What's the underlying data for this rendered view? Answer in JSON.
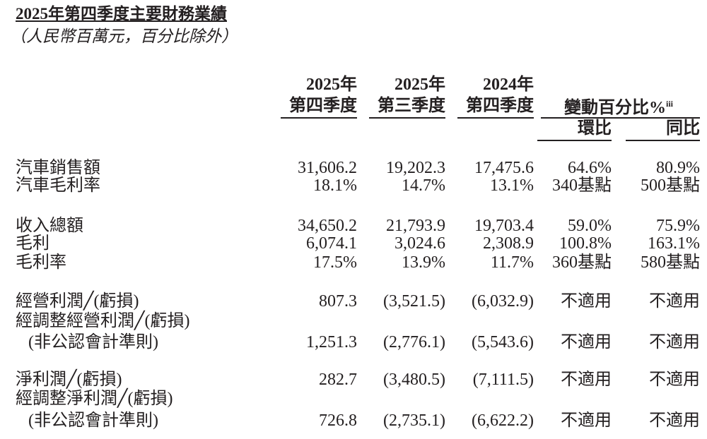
{
  "header": {
    "title": "2025年第四季度主要財務業績",
    "subtitle": "（人民幣百萬元，百分比除外）"
  },
  "table": {
    "columns": [
      [
        "2025年",
        "第四季度"
      ],
      [
        "2025年",
        "第三季度"
      ],
      [
        "2024年",
        "第四季度"
      ]
    ],
    "change_header": "變動百分比%",
    "change_note": "iii",
    "change_columns": [
      "環比",
      "同比"
    ],
    "rows": [
      {
        "labels": [
          "汽車銷售額"
        ],
        "values": [
          "31,606.2",
          "19,202.3",
          "17,475.6",
          "64.6%",
          "80.9%"
        ]
      },
      {
        "labels": [
          "汽車毛利率"
        ],
        "values": [
          "18.1%",
          "14.7%",
          "13.1%",
          "340基點",
          "500基點"
        ]
      },
      {
        "labels": [
          "收入總額"
        ],
        "values": [
          "34,650.2",
          "21,793.9",
          "19,703.4",
          "59.0%",
          "75.9%"
        ]
      },
      {
        "labels": [
          "毛利"
        ],
        "values": [
          "6,074.1",
          "3,024.6",
          "2,308.9",
          "100.8%",
          "163.1%"
        ]
      },
      {
        "labels": [
          "毛利率"
        ],
        "values": [
          "17.5%",
          "13.9%",
          "11.7%",
          "360基點",
          "580基點"
        ]
      },
      {
        "labels": [
          "經營利潤╱(虧損)"
        ],
        "values": [
          "807.3",
          "(3,521.5)",
          "(6,032.9)",
          "不適用",
          "不適用"
        ]
      },
      {
        "labels": [
          "經調整經營利潤╱(虧損)",
          "(非公認會計準則)"
        ],
        "values": [
          "1,251.3",
          "(2,776.1)",
          "(5,543.6)",
          "不適用",
          "不適用"
        ]
      },
      {
        "labels": [
          "淨利潤╱(虧損)"
        ],
        "values": [
          "282.7",
          "(3,480.5)",
          "(7,111.5)",
          "不適用",
          "不適用"
        ]
      },
      {
        "labels": [
          "經調整淨利潤╱(虧損)",
          "(非公認會計準則)"
        ],
        "values": [
          "726.8",
          "(2,735.1)",
          "(6,622.2)",
          "不適用",
          "不適用"
        ]
      }
    ]
  }
}
